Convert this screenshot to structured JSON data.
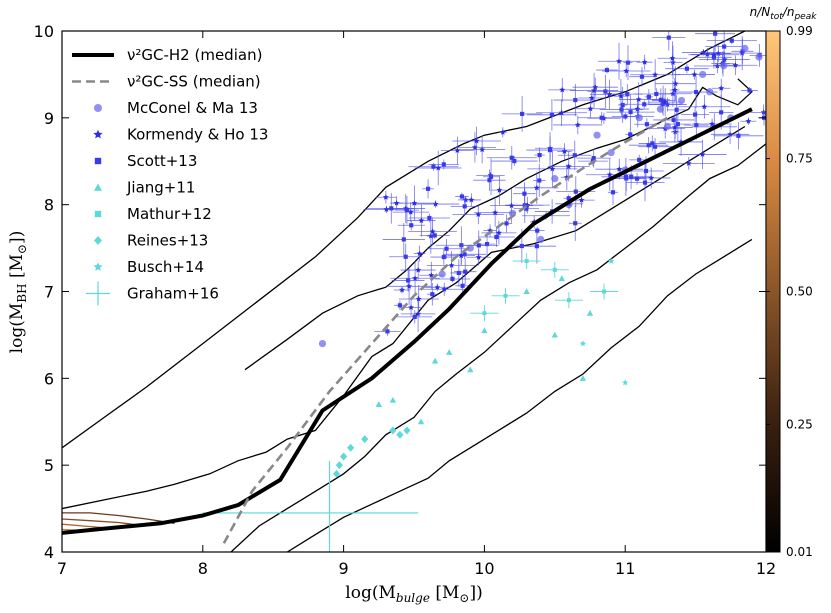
{
  "chart_data": {
    "type": "scatter",
    "xlabel": "log(M_bulge [M_⊙])",
    "ylabel": "log(M_BH [M_⊙])",
    "xlim": [
      7,
      12
    ],
    "ylim": [
      4,
      10
    ],
    "xticks": [
      "7",
      "8",
      "9",
      "10",
      "11",
      "12"
    ],
    "yticks": [
      "4",
      "5",
      "6",
      "7",
      "8",
      "9",
      "10"
    ],
    "colorbar": {
      "title": "n/N_tot/n_peak",
      "ticks": [
        "0.01",
        "0.25",
        "0.50",
        "0.75",
        "0.99"
      ],
      "tick_values": [
        0.01,
        0.25,
        0.5,
        0.75,
        0.99
      ]
    },
    "series": [
      {
        "name": "ν²GC-H2 (median)",
        "kind": "line",
        "color": "#000000",
        "x": [
          7.0,
          7.3,
          7.7,
          8.0,
          8.25,
          8.55,
          8.85,
          9.2,
          9.5,
          9.75,
          10.05,
          10.35,
          10.75,
          11.15,
          11.55,
          11.9
        ],
        "y": [
          4.22,
          4.27,
          4.33,
          4.42,
          4.54,
          4.83,
          5.63,
          6.0,
          6.42,
          6.8,
          7.32,
          7.78,
          8.18,
          8.5,
          8.82,
          9.1
        ]
      },
      {
        "name": "ν²GC-SS (median)",
        "kind": "dashed",
        "color": "#888888",
        "x": [
          8.15,
          8.35,
          8.6,
          8.9,
          9.2,
          9.5,
          9.8,
          10.1,
          10.4,
          10.7,
          11.0,
          11.3
        ],
        "y": [
          4.1,
          4.7,
          5.2,
          5.85,
          6.4,
          6.95,
          7.4,
          7.75,
          8.1,
          8.42,
          8.72,
          9.0
        ]
      },
      {
        "name": "McConel & Ma 13",
        "marker": "circle",
        "color": "#6b6bf2"
      },
      {
        "name": "Kormendy & Ho 13",
        "marker": "star",
        "color": "#2b2be0"
      },
      {
        "name": "Scott+13",
        "marker": "square",
        "color": "#3a3ae8"
      },
      {
        "name": "Jiang+11",
        "marker": "triangle",
        "color": "#5ed8d8"
      },
      {
        "name": "Mathur+12",
        "marker": "square",
        "color": "#5ed8d8"
      },
      {
        "name": "Reines+13",
        "marker": "diamond",
        "color": "#5ed8d8"
      },
      {
        "name": "Busch+14",
        "marker": "star",
        "color": "#5ed8d8"
      },
      {
        "name": "Graham+16",
        "marker": "cross",
        "color": "#5ed8d8"
      }
    ],
    "reines13": {
      "x": [
        8.95,
        8.97,
        9.0,
        9.05,
        9.15,
        9.35,
        9.4,
        9.45
      ],
      "y": [
        4.9,
        5.0,
        5.1,
        5.2,
        5.3,
        5.4,
        5.35,
        5.4
      ]
    },
    "jiang11": {
      "x": [
        9.25,
        9.35,
        9.55,
        9.65,
        9.75,
        9.9,
        10.0,
        10.3,
        10.55,
        10.7,
        10.75,
        10.5
      ],
      "y": [
        5.7,
        5.75,
        5.5,
        6.2,
        6.3,
        6.1,
        6.55,
        7.0,
        7.15,
        6.0,
        6.75,
        6.5
      ]
    },
    "busch14": {
      "x": [
        10.7,
        11.0,
        10.9
      ],
      "y": [
        6.4,
        5.95,
        7.35
      ]
    },
    "mathur12": {
      "x": [
        10.0,
        10.15,
        10.3,
        10.6,
        10.5,
        10.85
      ],
      "y": [
        6.75,
        6.95,
        7.35,
        6.9,
        7.25,
        7.0
      ]
    },
    "graham16": {
      "x": [
        8.9
      ],
      "y": [
        4.45
      ],
      "xerr": [
        0.9
      ],
      "yerr": [
        0.6
      ]
    },
    "mcconnell13": {
      "x": [
        8.85,
        9.7,
        9.9,
        10.2,
        10.5,
        10.6,
        10.9,
        11.1,
        11.25,
        11.4,
        11.55,
        11.7,
        11.85,
        11.95,
        10.8,
        11.0,
        11.3,
        10.4,
        11.6,
        11.75
      ],
      "y": [
        6.4,
        7.2,
        7.5,
        7.9,
        8.3,
        8.0,
        8.6,
        9.0,
        9.1,
        9.2,
        9.5,
        9.6,
        9.8,
        9.7,
        8.8,
        8.4,
        8.9,
        7.6,
        9.3,
        9.0
      ]
    },
    "contours": [
      {
        "color": "#000000",
        "points": [
          [
            7.0,
            5.2
          ],
          [
            7.3,
            5.55
          ],
          [
            7.6,
            5.9
          ],
          [
            8.0,
            6.4
          ],
          [
            8.4,
            6.9
          ],
          [
            8.8,
            7.4
          ],
          [
            9.1,
            7.85
          ],
          [
            9.3,
            8.2
          ],
          [
            9.6,
            8.5
          ],
          [
            9.85,
            8.7
          ],
          [
            10.0,
            8.8
          ],
          [
            10.3,
            8.9
          ],
          [
            10.7,
            9.15
          ],
          [
            11.0,
            9.3
          ],
          [
            11.3,
            9.5
          ],
          [
            11.6,
            9.8
          ],
          [
            11.85,
            10.0
          ]
        ]
      },
      {
        "color": "#000000",
        "points": [
          [
            7.0,
            4.5
          ],
          [
            7.3,
            4.6
          ],
          [
            7.6,
            4.7
          ],
          [
            7.8,
            4.78
          ],
          [
            8.05,
            4.9
          ],
          [
            8.25,
            5.05
          ],
          [
            8.45,
            5.15
          ],
          [
            8.6,
            5.3
          ],
          [
            8.8,
            5.4
          ],
          [
            9.0,
            5.8
          ],
          [
            9.2,
            6.25
          ],
          [
            9.35,
            6.4
          ],
          [
            9.6,
            6.9
          ],
          [
            9.8,
            7.1
          ],
          [
            10.05,
            7.45
          ],
          [
            10.35,
            7.55
          ],
          [
            10.65,
            7.7
          ],
          [
            11.0,
            8.05
          ],
          [
            11.3,
            8.35
          ],
          [
            11.6,
            8.65
          ],
          [
            11.85,
            8.9
          ]
        ]
      },
      {
        "color": "#000000",
        "points": [
          [
            8.2,
            4.0
          ],
          [
            8.4,
            4.3
          ],
          [
            8.55,
            4.45
          ],
          [
            8.7,
            4.6
          ],
          [
            8.85,
            4.75
          ],
          [
            9.0,
            4.9
          ],
          [
            9.15,
            5.1
          ],
          [
            9.3,
            5.35
          ],
          [
            9.5,
            5.55
          ],
          [
            9.65,
            5.85
          ],
          [
            9.8,
            6.05
          ],
          [
            10.0,
            6.3
          ],
          [
            10.2,
            6.6
          ],
          [
            10.4,
            6.9
          ],
          [
            10.6,
            7.1
          ],
          [
            10.8,
            7.25
          ],
          [
            11.0,
            7.5
          ],
          [
            11.2,
            7.75
          ],
          [
            11.45,
            8.1
          ],
          [
            11.6,
            8.3
          ],
          [
            11.8,
            8.45
          ],
          [
            12.0,
            8.7
          ]
        ]
      },
      {
        "color": "#000000",
        "points": [
          [
            8.6,
            4.0
          ],
          [
            8.8,
            4.2
          ],
          [
            9.0,
            4.4
          ],
          [
            9.2,
            4.55
          ],
          [
            9.4,
            4.7
          ],
          [
            9.6,
            4.85
          ],
          [
            9.75,
            5.05
          ],
          [
            9.9,
            5.2
          ],
          [
            10.1,
            5.4
          ],
          [
            10.3,
            5.6
          ],
          [
            10.5,
            5.85
          ],
          [
            10.7,
            6.05
          ],
          [
            10.9,
            6.35
          ],
          [
            11.1,
            6.6
          ],
          [
            11.3,
            6.95
          ],
          [
            11.5,
            7.2
          ],
          [
            11.7,
            7.4
          ],
          [
            11.9,
            7.6
          ]
        ]
      },
      {
        "color": "#000000",
        "points": [
          [
            8.3,
            6.1
          ],
          [
            8.6,
            6.45
          ],
          [
            8.85,
            6.75
          ],
          [
            9.1,
            6.95
          ],
          [
            9.3,
            7.05
          ],
          [
            9.45,
            7.25
          ],
          [
            9.6,
            7.5
          ],
          [
            9.75,
            7.7
          ],
          [
            9.9,
            7.95
          ],
          [
            10.1,
            8.1
          ],
          [
            10.3,
            8.3
          ],
          [
            10.55,
            8.5
          ],
          [
            10.8,
            8.65
          ],
          [
            11.0,
            8.75
          ],
          [
            11.25,
            8.95
          ],
          [
            11.45,
            9.1
          ]
        ]
      },
      {
        "color": "#000000",
        "points": [
          [
            11.45,
            9.1
          ],
          [
            11.55,
            9.35
          ],
          [
            11.65,
            9.25
          ],
          [
            11.8,
            9.15
          ],
          [
            11.9,
            9.3
          ],
          [
            11.8,
            9.45
          ]
        ]
      },
      {
        "color": "#6b3a1c",
        "points": [
          [
            7.0,
            4.45
          ],
          [
            7.2,
            4.45
          ],
          [
            7.4,
            4.42
          ],
          [
            7.6,
            4.38
          ],
          [
            7.8,
            4.33
          ]
        ]
      },
      {
        "color": "#8a4a22",
        "points": [
          [
            7.0,
            4.38
          ],
          [
            7.2,
            4.36
          ],
          [
            7.4,
            4.34
          ],
          [
            7.55,
            4.31
          ]
        ]
      },
      {
        "color": "#b06030",
        "points": [
          [
            7.0,
            4.32
          ],
          [
            7.15,
            4.3
          ],
          [
            7.3,
            4.28
          ]
        ]
      },
      {
        "color": "#d08040",
        "points": [
          [
            7.0,
            4.26
          ],
          [
            7.12,
            4.25
          ]
        ]
      }
    ]
  }
}
